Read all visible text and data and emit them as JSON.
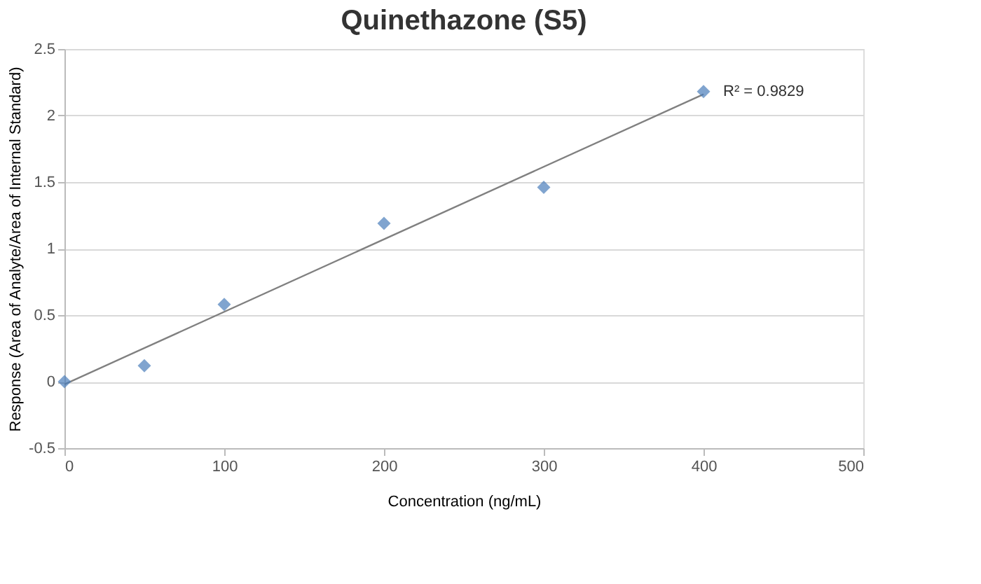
{
  "chart_data": {
    "type": "scatter",
    "title": "Quinethazone (S5)",
    "xlabel": "Concentration (ng/mL)",
    "ylabel": "Response (Area of Analyte/Area of Internal Standard)",
    "series": [
      {
        "color": "#4a7ebb",
        "x": [
          0,
          50,
          100,
          200,
          300,
          400
        ],
        "values": [
          0,
          0.12,
          0.58,
          1.19,
          1.46,
          2.18
        ],
        "marker": "diamond"
      },
      {
        "type": "line",
        "color": "#808080",
        "x": [
          0,
          400
        ],
        "values": [
          -0.02,
          2.16
        ],
        "marker": "none",
        "line_style": "solid"
      }
    ],
    "annotations": [
      {
        "text": "R² = 0.9829",
        "x": 400,
        "y": 2.18
      }
    ],
    "xlim": [
      0,
      500
    ],
    "xticks": [
      0,
      100,
      200,
      300,
      400,
      500
    ],
    "ylim": [
      -0.5,
      2.5
    ],
    "yticks": [
      -0.5,
      0,
      0.5,
      1,
      1.5,
      2,
      2.5
    ],
    "grid": "y"
  }
}
